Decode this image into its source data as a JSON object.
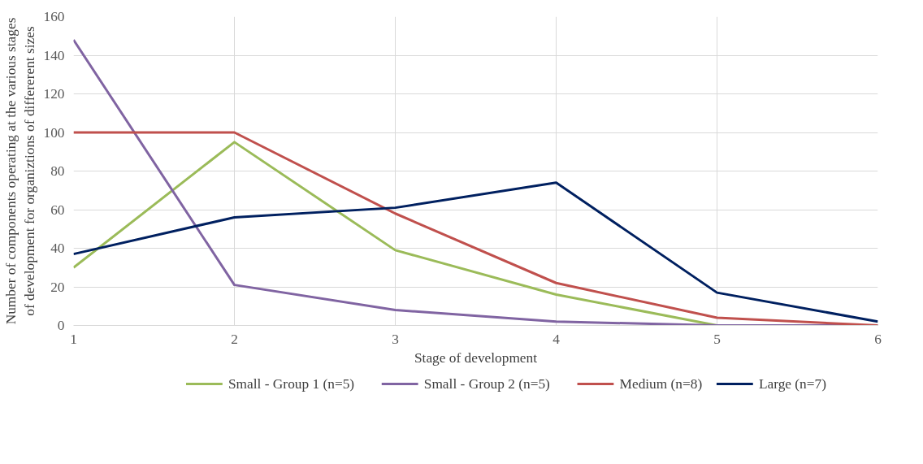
{
  "chart_data": {
    "type": "line",
    "xlabel": "Stage of development",
    "ylabel": "Number of components operating at the various stages of development for organiztions of differerent sizes",
    "x": [
      1,
      2,
      3,
      4,
      5,
      6
    ],
    "series": [
      {
        "name": "Small - Group 1 (n=5)",
        "color": "#9bbb59",
        "values": [
          30,
          95,
          39,
          16,
          0,
          0
        ]
      },
      {
        "name": "Small - Group 2 (n=5)",
        "color": "#8064a2",
        "values": [
          148,
          21,
          8,
          2,
          0,
          0
        ]
      },
      {
        "name": "Medium (n=8)",
        "color": "#c0504d",
        "values": [
          100,
          100,
          58,
          22,
          4,
          0
        ]
      },
      {
        "name": "Large (n=7)",
        "color": "#002060",
        "values": [
          37,
          56,
          61,
          74,
          17,
          2
        ]
      }
    ],
    "xlim": [
      1,
      6
    ],
    "xticks": [
      1,
      2,
      3,
      4,
      5,
      6
    ],
    "ylim": [
      0,
      160
    ],
    "yticks": [
      0,
      20,
      40,
      60,
      80,
      100,
      120,
      140,
      160
    ],
    "grid": true,
    "legend": "bottom",
    "marker": "none",
    "line_style": "solid"
  }
}
